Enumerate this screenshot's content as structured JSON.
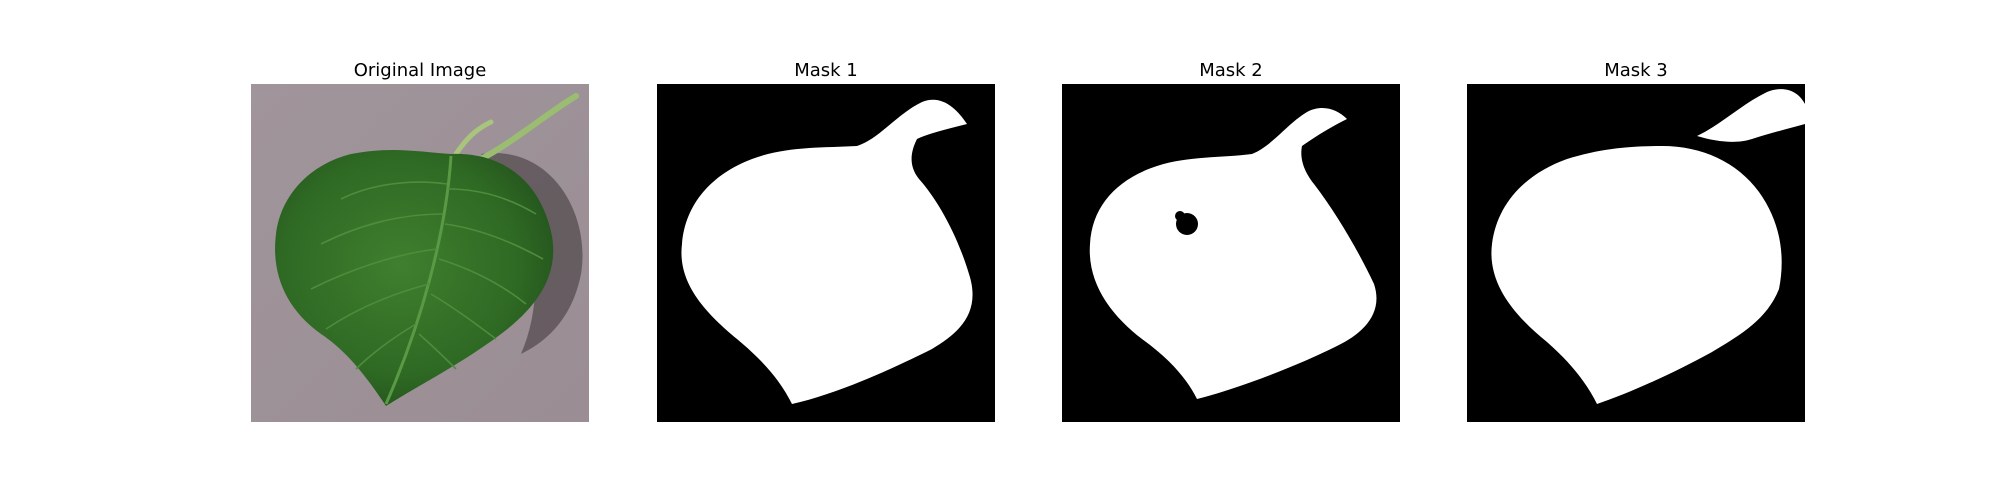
{
  "figure": {
    "background": "#ffffff",
    "panels": [
      {
        "title": "Original Image",
        "kind": "photo"
      },
      {
        "title": "Mask 1",
        "kind": "mask"
      },
      {
        "title": "Mask 2",
        "kind": "mask"
      },
      {
        "title": "Mask 3",
        "kind": "mask"
      }
    ]
  },
  "colors": {
    "mask_background": "#000000",
    "mask_foreground": "#ffffff",
    "photo_background": "#9a8e93",
    "leaf_dark": "#1f4a1c",
    "leaf_mid": "#3b7a2c",
    "leaf_light": "#6aa84f",
    "stem": "#8fb36a"
  }
}
